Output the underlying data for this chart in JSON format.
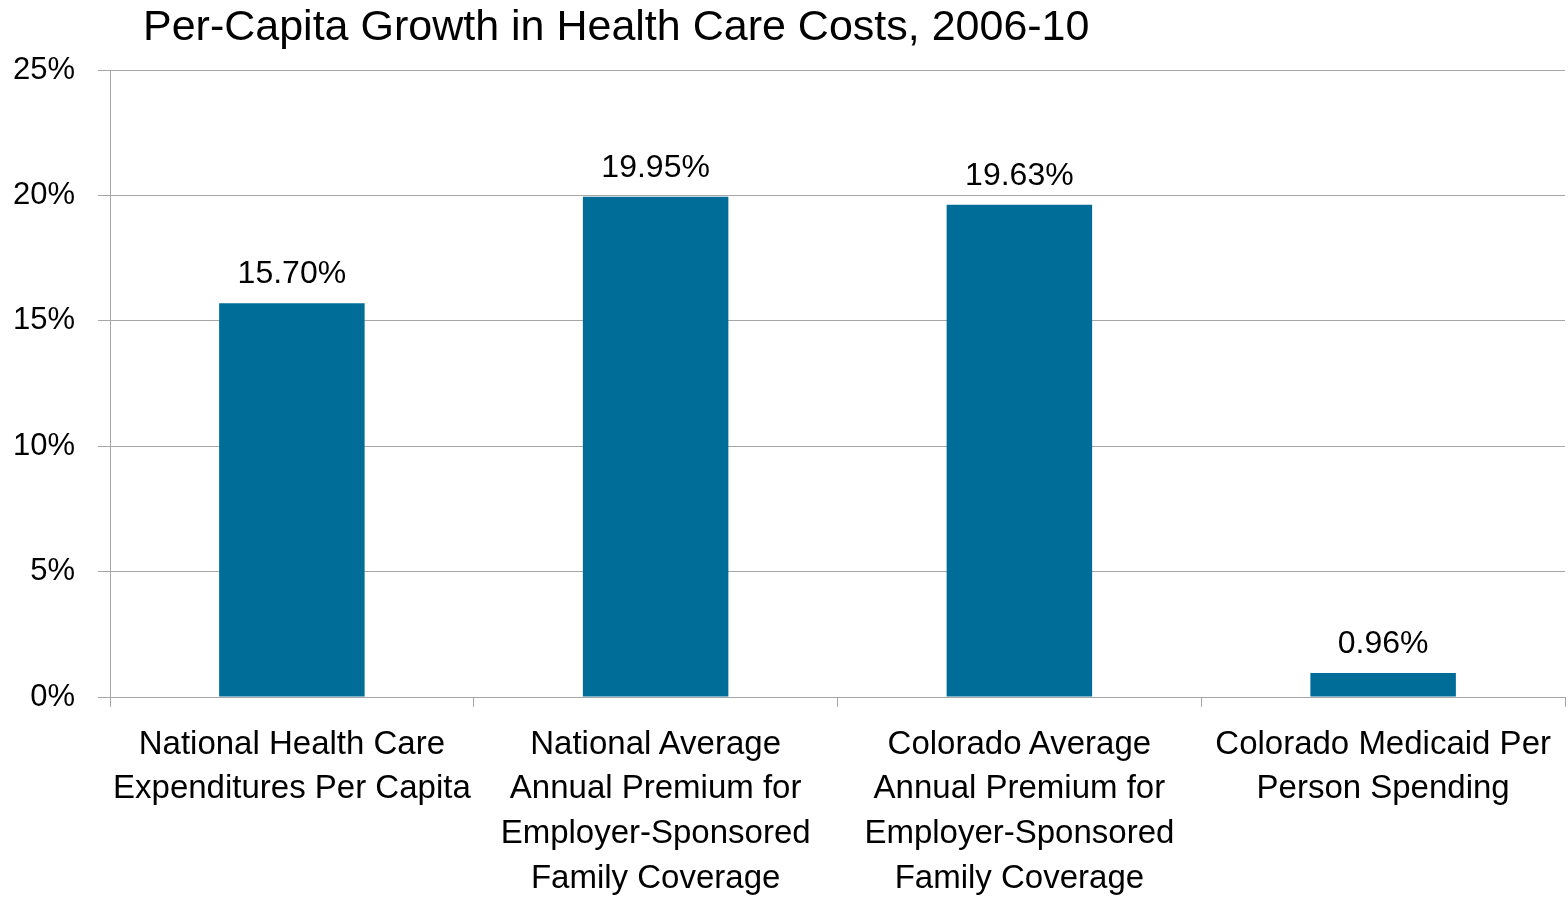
{
  "chart_data": {
    "type": "bar",
    "title": "Per-Capita Growth in Health Care Costs, 2006-10",
    "categories": [
      "National Health Care Expenditures Per Capita",
      "National Average Annual Premium for Employer-Sponsored Family Coverage",
      "Colorado Average Annual Premium for Employer-Sponsored Family Coverage",
      "Colorado Medicaid Per Person Spending"
    ],
    "values": [
      15.7,
      19.95,
      19.63,
      0.96
    ],
    "value_labels": [
      "15.70%",
      "19.95%",
      "19.63%",
      "0.96%"
    ],
    "color": "#006d99",
    "ylim": [
      0,
      25
    ],
    "yticks": [
      {
        "value": 0,
        "label": "0%"
      },
      {
        "value": 5,
        "label": "5%"
      },
      {
        "value": 10,
        "label": "10%"
      },
      {
        "value": 15,
        "label": "15%"
      },
      {
        "value": 20,
        "label": "20%"
      },
      {
        "value": 25,
        "label": "25%"
      }
    ],
    "grid": "y",
    "legend": false
  }
}
